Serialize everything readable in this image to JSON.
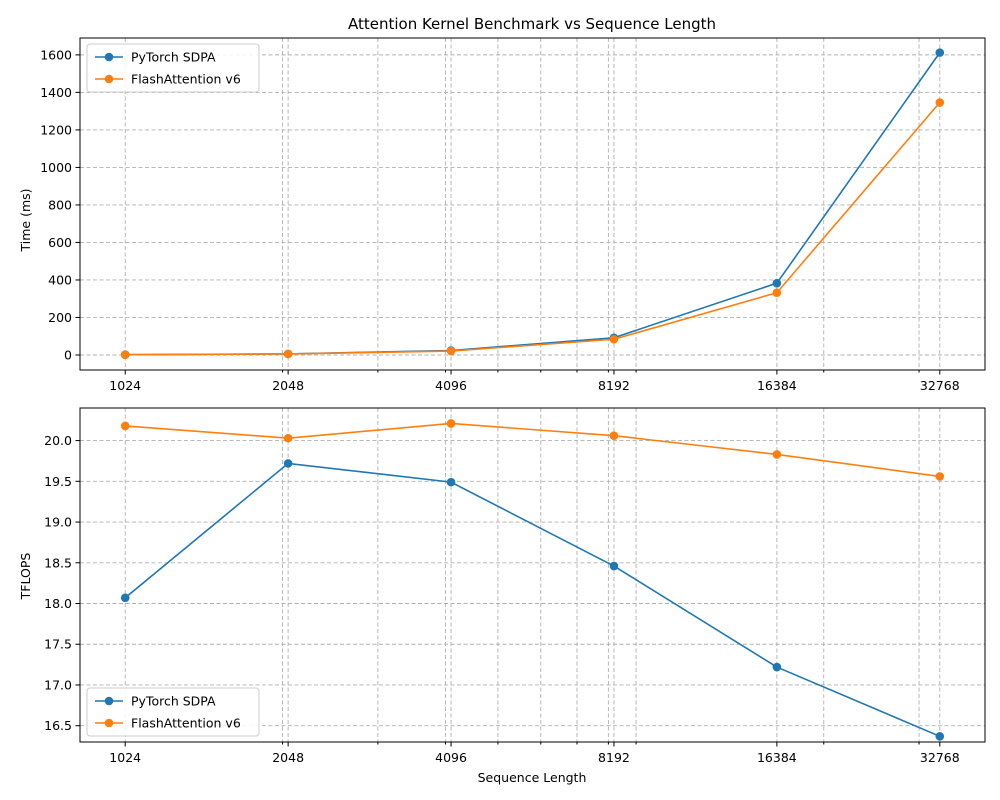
{
  "chart_data": [
    {
      "type": "line",
      "title": "Attention Kernel Benchmark vs Sequence Length",
      "xlabel": "",
      "ylabel": "Time (ms)",
      "xscale": "log2",
      "x": [
        1024,
        2048,
        4096,
        8192,
        16384,
        32768
      ],
      "x_tick_labels": [
        "1024",
        "2048",
        "4096",
        "8192",
        "16384",
        "32768"
      ],
      "ylim": [
        -80,
        1690
      ],
      "y_ticks": [
        0,
        200,
        400,
        600,
        800,
        1000,
        1200,
        1400,
        1600
      ],
      "y_tick_labels": [
        "0",
        "200",
        "400",
        "600",
        "800",
        "1000",
        "1200",
        "1400",
        "1600"
      ],
      "grid": true,
      "legend_position": "upper-left",
      "series": [
        {
          "name": "PyTorch SDPA",
          "color": "#1f77b4",
          "values": [
            1.6,
            6.0,
            24.0,
            92.0,
            383.0,
            1612.0
          ]
        },
        {
          "name": "FlashAttention v6",
          "color": "#ff7f0e",
          "values": [
            1.5,
            5.5,
            21.0,
            84.0,
            332.0,
            1346.0
          ]
        }
      ]
    },
    {
      "type": "line",
      "title": "",
      "xlabel": "Sequence Length",
      "ylabel": "TFLOPS",
      "xscale": "log2",
      "x": [
        1024,
        2048,
        4096,
        8192,
        16384,
        32768
      ],
      "x_tick_labels": [
        "1024",
        "2048",
        "4096",
        "8192",
        "16384",
        "32768"
      ],
      "ylim": [
        16.3,
        20.4
      ],
      "y_ticks": [
        16.5,
        17.0,
        17.5,
        18.0,
        18.5,
        19.0,
        19.5,
        20.0
      ],
      "y_tick_labels": [
        "16.5",
        "17.0",
        "17.5",
        "18.0",
        "18.5",
        "19.0",
        "19.5",
        "20.0"
      ],
      "grid": true,
      "legend_position": "lower-left",
      "series": [
        {
          "name": "PyTorch SDPA",
          "color": "#1f77b4",
          "values": [
            18.07,
            19.72,
            19.49,
            18.46,
            17.22,
            16.37
          ]
        },
        {
          "name": "FlashAttention v6",
          "color": "#ff7f0e",
          "values": [
            20.18,
            20.03,
            20.21,
            20.06,
            19.83,
            19.56
          ]
        }
      ]
    }
  ]
}
